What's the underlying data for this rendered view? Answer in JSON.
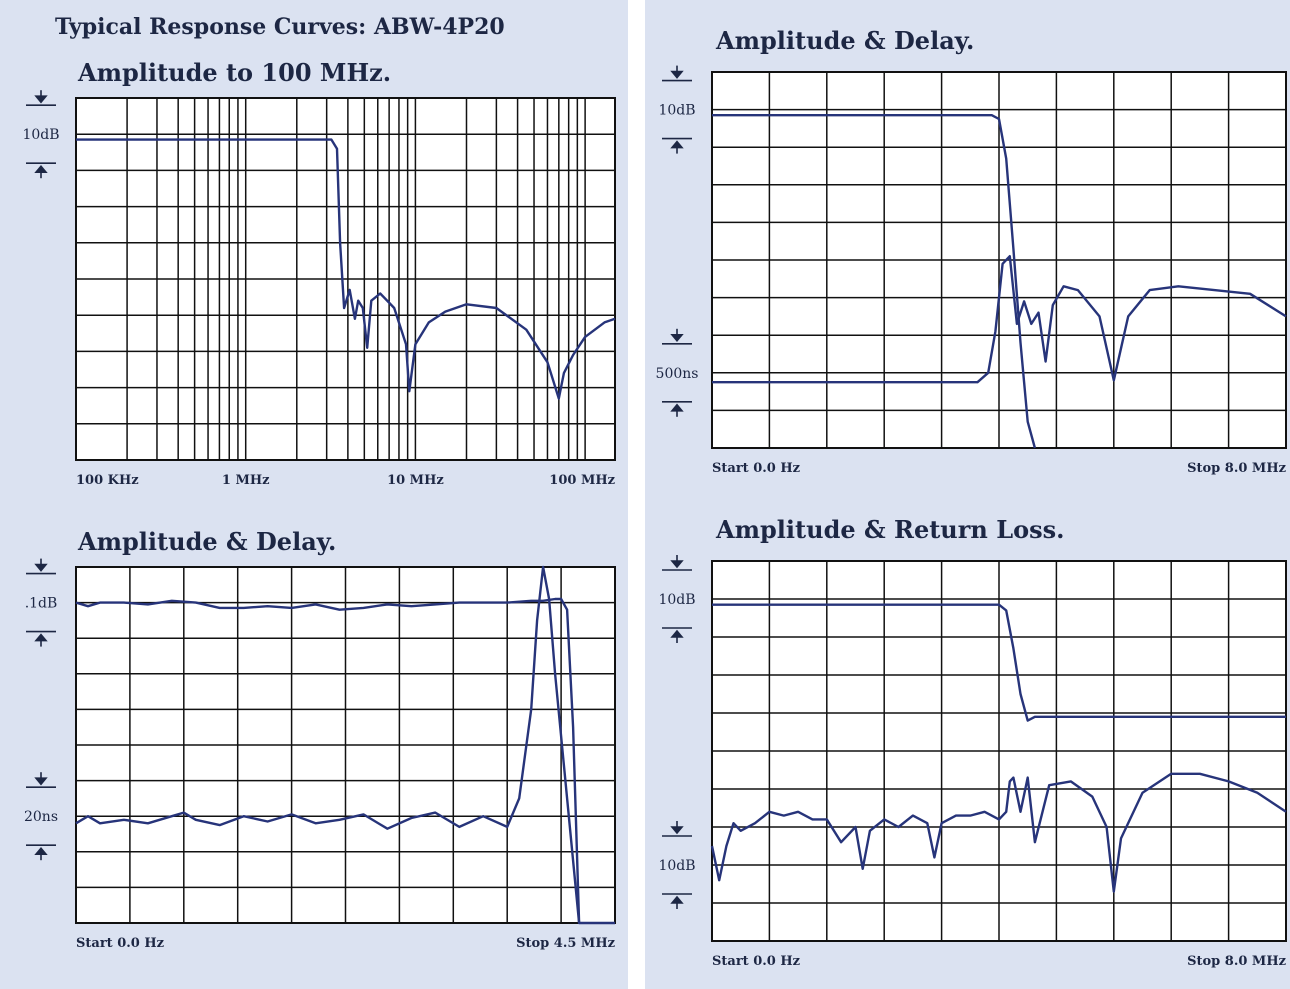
{
  "main_title": "Typical Response Curves: ABW-4P20",
  "colors": {
    "panel": "#dbe2f1",
    "curve": "#27347a",
    "grid": "#111111"
  },
  "chart_data": [
    {
      "id": "chart1",
      "type": "line",
      "title": "Amplitude to 100 MHz.",
      "x_scale": "log",
      "xlim": [
        0.1,
        150
      ],
      "x_unit": "MHz",
      "tick_labels": [
        {
          "text": "100 KHz",
          "x": 0.1
        },
        {
          "text": "1 MHz",
          "x": 1
        },
        {
          "text": "10 MHz",
          "x": 10
        },
        {
          "text": "100 MHz",
          "x": 100
        }
      ],
      "grid": true,
      "divisions_y": 10,
      "scale_markers": [
        {
          "label": "10dB",
          "div": 1
        }
      ],
      "series": [
        {
          "x": [
            0.1,
            1,
            3.2,
            3.45,
            3.6,
            3.8,
            4.1,
            4.4,
            4.6,
            4.9,
            5.2,
            5.5,
            6.2,
            7.5,
            8.8,
            9.2,
            10,
            12,
            15,
            20,
            30,
            45,
            60,
            70,
            75,
            85,
            100,
            130,
            150
          ],
          "y": [
            1.15,
            1.15,
            1.15,
            1.4,
            4.0,
            5.8,
            5.3,
            6.1,
            5.6,
            5.8,
            6.9,
            5.6,
            5.4,
            5.8,
            6.8,
            8.1,
            6.8,
            6.2,
            5.9,
            5.7,
            5.8,
            6.4,
            7.3,
            8.3,
            7.6,
            7.1,
            6.6,
            6.2,
            6.1
          ]
        }
      ]
    },
    {
      "id": "chart2",
      "type": "line",
      "title": "Amplitude & Delay.",
      "xlim": [
        0,
        4.5
      ],
      "x_unit": "MHz",
      "start_label": "Start 0.0 Hz",
      "stop_label": "Stop 4.5 MHz",
      "grid": true,
      "divisions_y": 10,
      "scale_markers": [
        {
          "label": ".1dB",
          "div": 1
        },
        {
          "label": "20ns",
          "div": 7
        }
      ],
      "series": [
        {
          "x": [
            0,
            0.1,
            0.2,
            0.4,
            0.6,
            0.8,
            1.0,
            1.2,
            1.4,
            1.6,
            1.8,
            2.0,
            2.2,
            2.4,
            2.6,
            2.8,
            3.0,
            3.2,
            3.4,
            3.6,
            3.8,
            3.9,
            4.0,
            4.05,
            4.1,
            4.15,
            4.2
          ],
          "y": [
            1.0,
            1.1,
            1.0,
            1.0,
            1.05,
            0.95,
            1.0,
            1.15,
            1.15,
            1.1,
            1.15,
            1.05,
            1.2,
            1.15,
            1.05,
            1.1,
            1.05,
            1.0,
            1.0,
            1.0,
            0.95,
            0.95,
            0.9,
            0.9,
            1.2,
            4.5,
            10.0
          ]
        },
        {
          "x": [
            0,
            0.1,
            0.2,
            0.4,
            0.6,
            0.8,
            0.9,
            1.0,
            1.2,
            1.4,
            1.6,
            1.8,
            2.0,
            2.2,
            2.4,
            2.6,
            2.8,
            3.0,
            3.2,
            3.4,
            3.6,
            3.7,
            3.8,
            3.85,
            3.9,
            3.95,
            4.0,
            4.2,
            4.5
          ],
          "y": [
            7.2,
            7.0,
            7.2,
            7.1,
            7.2,
            7.0,
            6.9,
            7.1,
            7.25,
            7.0,
            7.15,
            6.95,
            7.2,
            7.1,
            6.95,
            7.35,
            7.05,
            6.9,
            7.3,
            7.0,
            7.3,
            6.5,
            4.0,
            1.5,
            0.0,
            0.9,
            3.0,
            10.0,
            10.0
          ]
        }
      ]
    },
    {
      "id": "chart3",
      "type": "line",
      "title": "Amplitude & Delay.",
      "xlim": [
        0,
        8
      ],
      "x_unit": "MHz",
      "start_label": "Start 0.0 Hz",
      "stop_label": "Stop 8.0 MHz",
      "grid": true,
      "divisions_y": 10,
      "scale_markers": [
        {
          "label": "10dB",
          "div": 1
        },
        {
          "label": "500ns",
          "div": 8
        }
      ],
      "series": [
        {
          "x": [
            0,
            3.9,
            4.0,
            4.1,
            4.2,
            4.3,
            4.4,
            4.5
          ],
          "y": [
            1.15,
            1.15,
            1.25,
            2.3,
            4.7,
            7.2,
            9.3,
            10.0
          ]
        },
        {
          "x": [
            0,
            3.7,
            3.85,
            3.95,
            4.05,
            4.15,
            4.25,
            4.35,
            4.45,
            4.55,
            4.65,
            4.75,
            4.9,
            5.1,
            5.4,
            5.6,
            5.8,
            6.1,
            6.5,
            7.0,
            7.5,
            8.0
          ],
          "y": [
            8.25,
            8.25,
            8.0,
            6.9,
            5.1,
            4.9,
            6.7,
            6.1,
            6.7,
            6.4,
            7.7,
            6.2,
            5.7,
            5.8,
            6.5,
            8.2,
            6.5,
            5.8,
            5.7,
            5.8,
            5.9,
            6.5
          ]
        }
      ]
    },
    {
      "id": "chart4",
      "type": "line",
      "title": "Amplitude & Return Loss.",
      "xlim": [
        0,
        8
      ],
      "x_unit": "MHz",
      "start_label": "Start 0.0 Hz",
      "stop_label": "Stop 8.0 MHz",
      "grid": true,
      "divisions_y": 10,
      "scale_markers": [
        {
          "label": "10dB",
          "div": 1
        },
        {
          "label": "10dB",
          "div": 8
        }
      ],
      "series": [
        {
          "x": [
            0,
            4.0,
            4.1,
            4.2,
            4.3,
            4.4,
            4.5,
            4.6,
            5.0,
            8.0
          ],
          "y": [
            1.15,
            1.15,
            1.3,
            2.3,
            3.5,
            4.2,
            4.1,
            4.1,
            4.1,
            4.1
          ]
        },
        {
          "x": [
            0,
            0.1,
            0.2,
            0.3,
            0.4,
            0.6,
            0.8,
            1.0,
            1.2,
            1.4,
            1.6,
            1.8,
            2.0,
            2.1,
            2.2,
            2.4,
            2.6,
            2.8,
            3.0,
            3.1,
            3.2,
            3.4,
            3.6,
            3.8,
            4.0,
            4.1,
            4.15,
            4.2,
            4.3,
            4.4,
            4.5,
            4.7,
            5.0,
            5.3,
            5.5,
            5.6,
            5.7,
            6.0,
            6.4,
            6.8,
            7.2,
            7.6,
            8.0
          ],
          "y": [
            7.5,
            8.4,
            7.5,
            6.9,
            7.1,
            6.9,
            6.6,
            6.7,
            6.6,
            6.8,
            6.8,
            7.4,
            7.0,
            8.1,
            7.1,
            6.8,
            7.0,
            6.7,
            6.9,
            7.8,
            6.9,
            6.7,
            6.7,
            6.6,
            6.8,
            6.6,
            5.8,
            5.7,
            6.6,
            5.7,
            7.4,
            5.9,
            5.8,
            6.2,
            7.0,
            8.7,
            7.3,
            6.1,
            5.6,
            5.6,
            5.8,
            6.1,
            6.6
          ]
        }
      ]
    }
  ]
}
